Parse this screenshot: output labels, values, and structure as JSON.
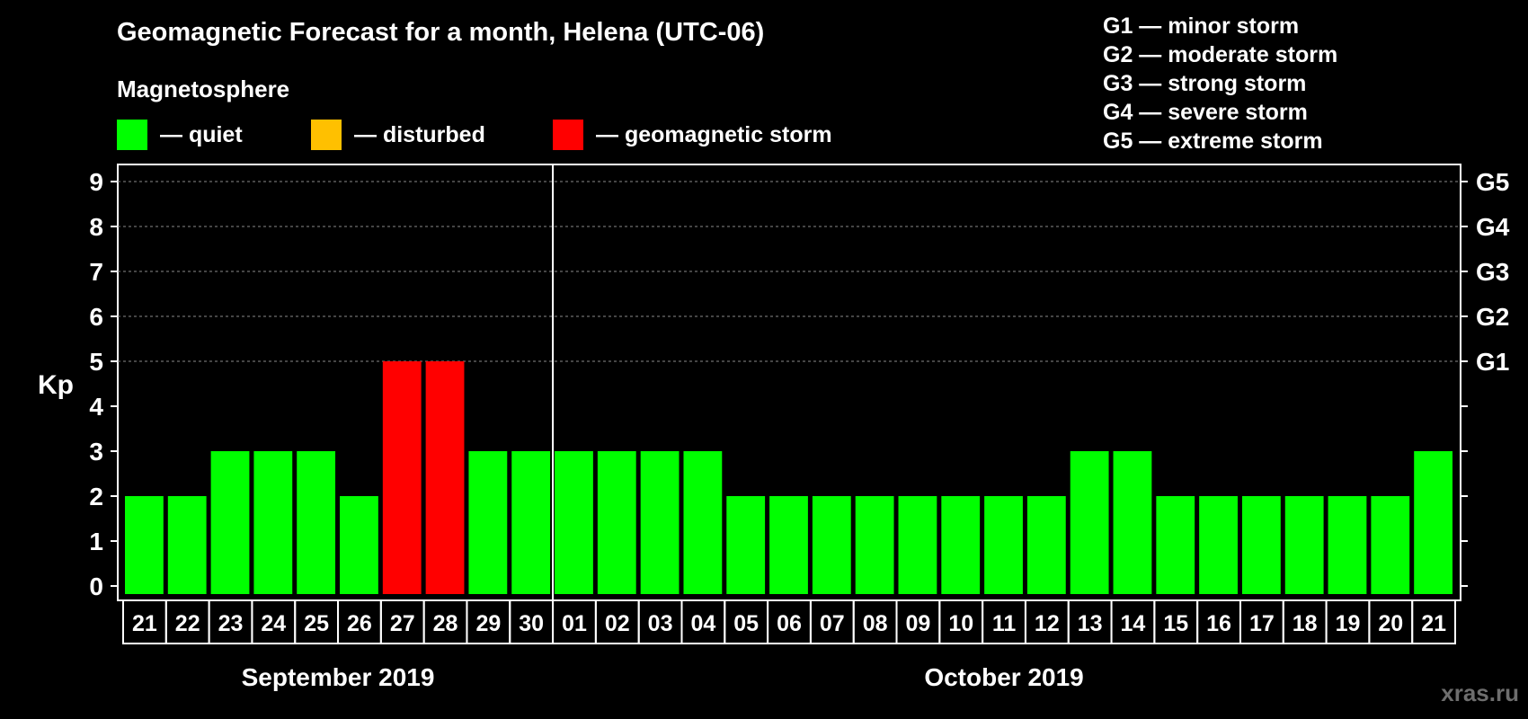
{
  "header": {
    "title": "Geomagnetic Forecast for a month, Helena (UTC-06)",
    "subtitle": "Magnetosphere"
  },
  "legend": [
    {
      "label": "— quiet",
      "color": "#00ff00"
    },
    {
      "label": "— disturbed",
      "color": "#ffc000"
    },
    {
      "label": "— geomagnetic storm",
      "color": "#ff0000"
    }
  ],
  "storm_scale": [
    "G1 — minor storm",
    "G2 — moderate storm",
    "G3 — strong storm",
    "G4 — severe storm",
    "G5 — extreme storm"
  ],
  "watermark": "xras.ru",
  "chart_data": {
    "type": "bar",
    "ylabel": "Kp",
    "ylim": [
      0,
      9
    ],
    "yticks": [
      "0",
      "1",
      "2",
      "3",
      "4",
      "5",
      "6",
      "7",
      "8",
      "9"
    ],
    "right_ticks": [
      {
        "kp": 5,
        "label": "G1"
      },
      {
        "kp": 6,
        "label": "G2"
      },
      {
        "kp": 7,
        "label": "G3"
      },
      {
        "kp": 8,
        "label": "G4"
      },
      {
        "kp": 9,
        "label": "G5"
      }
    ],
    "grid": "dashed horizontal at 5-9",
    "categories": [
      "21",
      "22",
      "23",
      "24",
      "25",
      "26",
      "27",
      "28",
      "29",
      "30",
      "01",
      "02",
      "03",
      "04",
      "05",
      "06",
      "07",
      "08",
      "09",
      "10",
      "11",
      "12",
      "13",
      "14",
      "15",
      "16",
      "17",
      "18",
      "19",
      "20",
      "21"
    ],
    "values": [
      2,
      2,
      3,
      3,
      3,
      2,
      5,
      5,
      3,
      3,
      3,
      3,
      3,
      3,
      2,
      2,
      2,
      2,
      2,
      2,
      2,
      2,
      3,
      3,
      2,
      2,
      2,
      2,
      2,
      2,
      3
    ],
    "status": [
      "quiet",
      "quiet",
      "quiet",
      "quiet",
      "quiet",
      "quiet",
      "storm",
      "storm",
      "quiet",
      "quiet",
      "quiet",
      "quiet",
      "quiet",
      "quiet",
      "quiet",
      "quiet",
      "quiet",
      "quiet",
      "quiet",
      "quiet",
      "quiet",
      "quiet",
      "quiet",
      "quiet",
      "quiet",
      "quiet",
      "quiet",
      "quiet",
      "quiet",
      "quiet",
      "quiet"
    ],
    "colors": {
      "quiet": "#00ff00",
      "disturbed": "#ffc000",
      "storm": "#ff0000"
    },
    "months": [
      {
        "label": "September 2019",
        "count": 10
      },
      {
        "label": "October 2019",
        "count": 21
      }
    ]
  }
}
